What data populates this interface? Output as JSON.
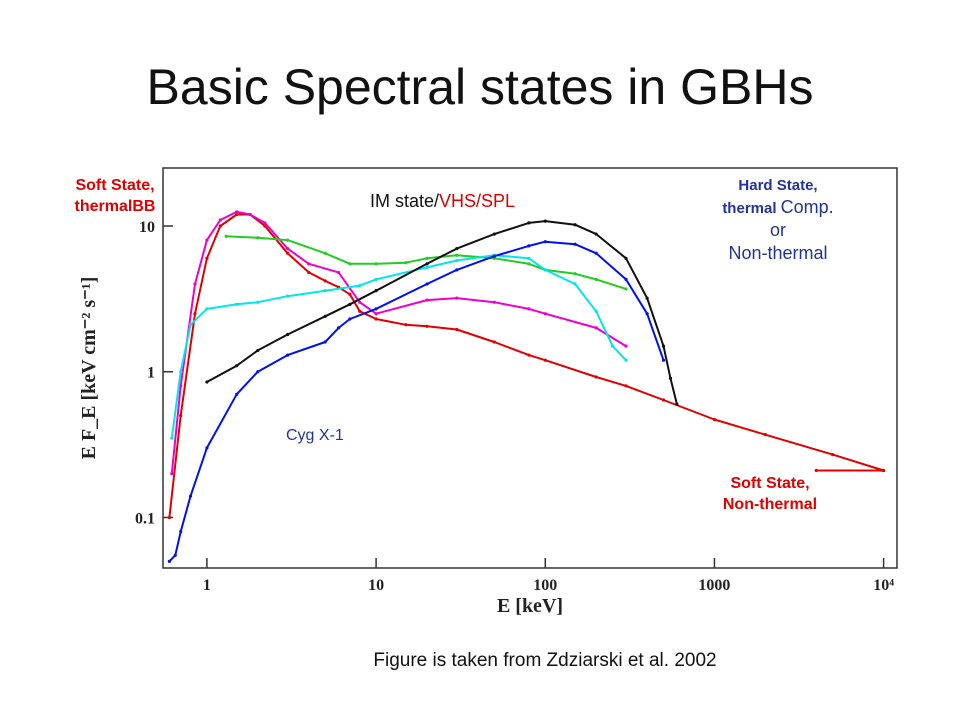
{
  "slide": {
    "title": "Basic Spectral states in GBHs",
    "caption": "Figure is taken from Zdziarski et al. 2002"
  },
  "annotations": {
    "soft_thermal": [
      "Soft State,",
      "thermalBB"
    ],
    "im_state_black": "IM state/",
    "im_state_colored": "VHS/SPL",
    "hard_state": {
      "line1": "Hard State,",
      "line2a": "thermal ",
      "line2b": "Comp.",
      "line3": "or",
      "line4": "Non-thermal"
    },
    "cyg": "Cyg X-1",
    "soft_nonthermal": [
      "Soft State,",
      "Non-thermal"
    ]
  },
  "colors": {
    "soft_thermal": "#e00000",
    "im_state": "#dd0000",
    "hard_state": "#223399",
    "cyg": "#223399"
  },
  "chart_data": {
    "type": "line",
    "x_scale": "log",
    "y_scale": "log",
    "xlim": [
      0.55,
      12000
    ],
    "ylim": [
      0.045,
      25
    ],
    "x_ticks": [
      1,
      10,
      100,
      1000,
      10000
    ],
    "x_tick_labels": [
      "1",
      "10",
      "100",
      "1000",
      "10⁴"
    ],
    "y_ticks": [
      0.1,
      1,
      10
    ],
    "y_tick_labels": [
      "0.1",
      "1",
      "10"
    ],
    "xlabel": "E [keV]",
    "ylabel": "E F_E [keV cm⁻² s⁻¹]",
    "series": [
      {
        "color": "#e00000",
        "points": [
          [
            0.6,
            0.1
          ],
          [
            0.7,
            0.5
          ],
          [
            0.85,
            2.5
          ],
          [
            1.0,
            6
          ],
          [
            1.2,
            10
          ],
          [
            1.5,
            12
          ],
          [
            1.8,
            12
          ],
          [
            2.2,
            10
          ],
          [
            3,
            6.5
          ],
          [
            4,
            4.8
          ],
          [
            5,
            4.2
          ],
          [
            6,
            3.8
          ],
          [
            7,
            3.4
          ],
          [
            8,
            2.6
          ],
          [
            10,
            2.3
          ],
          [
            15,
            2.1
          ],
          [
            20,
            2.05
          ],
          [
            30,
            1.95
          ],
          [
            50,
            1.6
          ],
          [
            80,
            1.3
          ],
          [
            100,
            1.2
          ],
          [
            200,
            0.92
          ],
          [
            300,
            0.8
          ],
          [
            500,
            0.64
          ],
          [
            1000,
            0.47
          ],
          [
            2000,
            0.37
          ],
          [
            5000,
            0.27
          ],
          [
            10000,
            0.21
          ]
        ]
      },
      {
        "color": "#ee00cc",
        "points": [
          [
            0.62,
            0.2
          ],
          [
            0.7,
            0.8
          ],
          [
            0.85,
            4
          ],
          [
            1.0,
            8
          ],
          [
            1.2,
            11
          ],
          [
            1.5,
            12.5
          ],
          [
            1.8,
            12
          ],
          [
            2.2,
            10.5
          ],
          [
            3,
            7
          ],
          [
            4,
            5.5
          ],
          [
            6,
            4.8
          ],
          [
            8,
            3
          ],
          [
            10,
            2.5
          ],
          [
            20,
            3.1
          ],
          [
            30,
            3.2
          ],
          [
            50,
            3
          ],
          [
            80,
            2.7
          ],
          [
            100,
            2.5
          ],
          [
            200,
            2.0
          ],
          [
            300,
            1.5
          ]
        ]
      },
      {
        "color": "#22cc22",
        "points": [
          [
            1.3,
            8.5
          ],
          [
            2,
            8.3
          ],
          [
            3,
            8
          ],
          [
            5,
            6.5
          ],
          [
            7,
            5.5
          ],
          [
            10,
            5.5
          ],
          [
            15,
            5.6
          ],
          [
            20,
            6
          ],
          [
            30,
            6.3
          ],
          [
            50,
            6
          ],
          [
            80,
            5.5
          ],
          [
            100,
            5
          ],
          [
            150,
            4.7
          ],
          [
            200,
            4.3
          ],
          [
            300,
            3.7
          ]
        ]
      },
      {
        "color": "#00e5ee",
        "points": [
          [
            0.62,
            0.35
          ],
          [
            0.7,
            1.0
          ],
          [
            0.8,
            2.1
          ],
          [
            1.0,
            2.7
          ],
          [
            1.5,
            2.9
          ],
          [
            2,
            3.0
          ],
          [
            3,
            3.3
          ],
          [
            5,
            3.6
          ],
          [
            8,
            3.9
          ],
          [
            10,
            4.3
          ],
          [
            20,
            5.2
          ],
          [
            30,
            5.8
          ],
          [
            50,
            6.3
          ],
          [
            80,
            6.0
          ],
          [
            100,
            5.0
          ],
          [
            150,
            4.0
          ],
          [
            200,
            2.6
          ],
          [
            250,
            1.5
          ],
          [
            300,
            1.2
          ]
        ]
      },
      {
        "color": "#0010ee",
        "points": [
          [
            0.6,
            0.05
          ],
          [
            0.65,
            0.055
          ],
          [
            0.7,
            0.08
          ],
          [
            0.8,
            0.14
          ],
          [
            1.0,
            0.3
          ],
          [
            1.5,
            0.7
          ],
          [
            2,
            1.0
          ],
          [
            3,
            1.3
          ],
          [
            5,
            1.6
          ],
          [
            6,
            2.0
          ],
          [
            7,
            2.3
          ],
          [
            10,
            2.7
          ],
          [
            20,
            4.0
          ],
          [
            30,
            5.0
          ],
          [
            50,
            6.2
          ],
          [
            80,
            7.3
          ],
          [
            100,
            7.8
          ],
          [
            150,
            7.5
          ],
          [
            200,
            6.5
          ],
          [
            300,
            4.3
          ],
          [
            400,
            2.5
          ],
          [
            500,
            1.2
          ]
        ]
      },
      {
        "color": "#111111",
        "points": [
          [
            1.0,
            0.85
          ],
          [
            1.5,
            1.1
          ],
          [
            2,
            1.4
          ],
          [
            3,
            1.8
          ],
          [
            5,
            2.4
          ],
          [
            7,
            2.9
          ],
          [
            10,
            3.6
          ],
          [
            20,
            5.5
          ],
          [
            30,
            7.0
          ],
          [
            50,
            8.8
          ],
          [
            80,
            10.5
          ],
          [
            100,
            10.8
          ],
          [
            150,
            10.2
          ],
          [
            200,
            8.8
          ],
          [
            300,
            6
          ],
          [
            400,
            3.2
          ],
          [
            500,
            1.5
          ],
          [
            550,
            0.9
          ],
          [
            600,
            0.6
          ]
        ]
      },
      {
        "color": "#e00000",
        "points": [
          [
            4000,
            0.21
          ],
          [
            10000,
            0.21
          ]
        ]
      }
    ]
  }
}
